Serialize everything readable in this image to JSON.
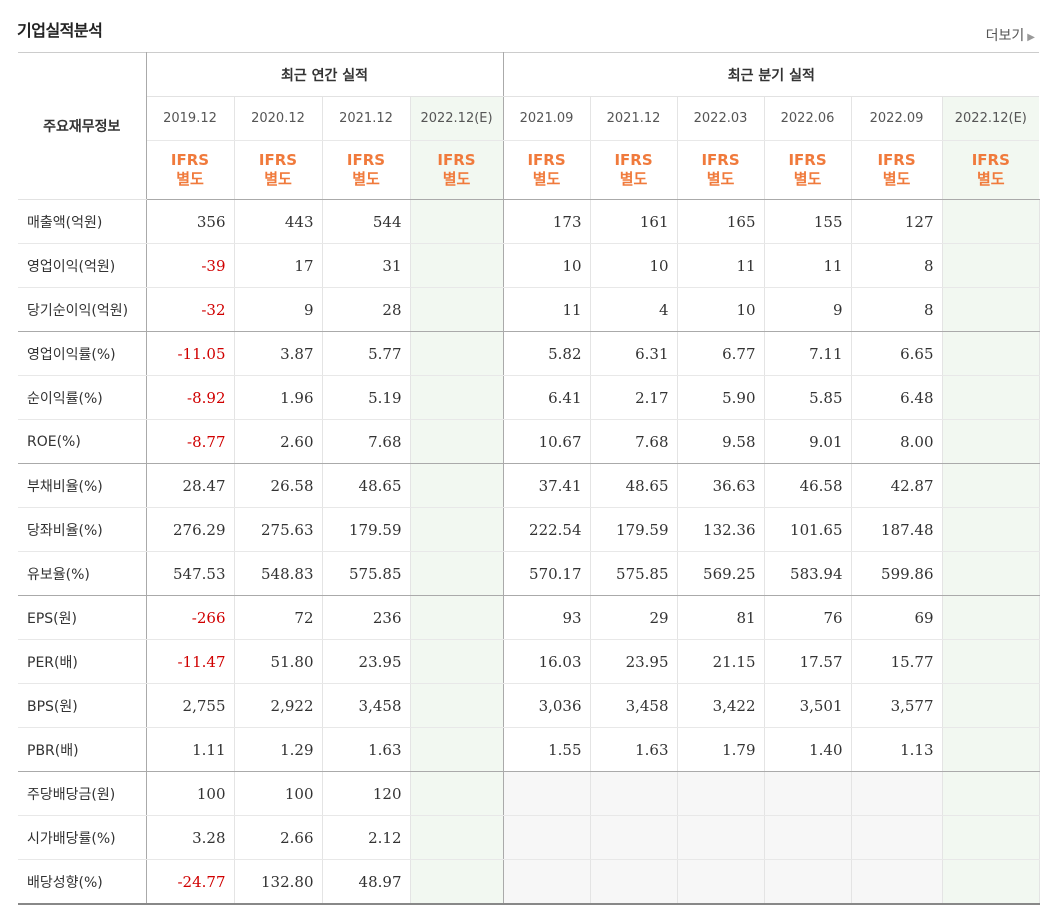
{
  "header": {
    "title": "기업실적분석",
    "more_label": "더보기"
  },
  "table": {
    "row_header": "주요재무정보",
    "group_annual": "최근 연간 실적",
    "group_quarter": "최근 분기 실적",
    "periods": [
      "2019.12",
      "2020.12",
      "2021.12",
      "2022.12(E)",
      "2021.09",
      "2021.12",
      "2022.03",
      "2022.06",
      "2022.09",
      "2022.12(E)"
    ],
    "ifrs": "IFRS",
    "separate": "별도",
    "rows": [
      {
        "label": "매출액(억원)",
        "values": [
          "356",
          "443",
          "544",
          "",
          "173",
          "161",
          "165",
          "155",
          "127",
          ""
        ]
      },
      {
        "label": "영업이익(억원)",
        "values": [
          "-39",
          "17",
          "31",
          "",
          "10",
          "10",
          "11",
          "11",
          "8",
          ""
        ]
      },
      {
        "label": "당기순이익(억원)",
        "values": [
          "-32",
          "9",
          "28",
          "",
          "11",
          "4",
          "10",
          "9",
          "8",
          ""
        ]
      },
      {
        "label": "영업이익률(%)",
        "values": [
          "-11.05",
          "3.87",
          "5.77",
          "",
          "5.82",
          "6.31",
          "6.77",
          "7.11",
          "6.65",
          ""
        ]
      },
      {
        "label": "순이익률(%)",
        "values": [
          "-8.92",
          "1.96",
          "5.19",
          "",
          "6.41",
          "2.17",
          "5.90",
          "5.85",
          "6.48",
          ""
        ]
      },
      {
        "label": "ROE(%)",
        "values": [
          "-8.77",
          "2.60",
          "7.68",
          "",
          "10.67",
          "7.68",
          "9.58",
          "9.01",
          "8.00",
          ""
        ]
      },
      {
        "label": "부채비율(%)",
        "values": [
          "28.47",
          "26.58",
          "48.65",
          "",
          "37.41",
          "48.65",
          "36.63",
          "46.58",
          "42.87",
          ""
        ]
      },
      {
        "label": "당좌비율(%)",
        "values": [
          "276.29",
          "275.63",
          "179.59",
          "",
          "222.54",
          "179.59",
          "132.36",
          "101.65",
          "187.48",
          ""
        ]
      },
      {
        "label": "유보율(%)",
        "values": [
          "547.53",
          "548.83",
          "575.85",
          "",
          "570.17",
          "575.85",
          "569.25",
          "583.94",
          "599.86",
          ""
        ]
      },
      {
        "label": "EPS(원)",
        "values": [
          "-266",
          "72",
          "236",
          "",
          "93",
          "29",
          "81",
          "76",
          "69",
          ""
        ]
      },
      {
        "label": "PER(배)",
        "values": [
          "-11.47",
          "51.80",
          "23.95",
          "",
          "16.03",
          "23.95",
          "21.15",
          "17.57",
          "15.77",
          ""
        ]
      },
      {
        "label": "BPS(원)",
        "values": [
          "2,755",
          "2,922",
          "3,458",
          "",
          "3,036",
          "3,458",
          "3,422",
          "3,501",
          "3,577",
          ""
        ]
      },
      {
        "label": "PBR(배)",
        "values": [
          "1.11",
          "1.29",
          "1.63",
          "",
          "1.55",
          "1.63",
          "1.79",
          "1.40",
          "1.13",
          ""
        ]
      },
      {
        "label": "주당배당금(원)",
        "values": [
          "100",
          "100",
          "120",
          "",
          "",
          "",
          "",
          "",
          "",
          ""
        ]
      },
      {
        "label": "시가배당률(%)",
        "values": [
          "3.28",
          "2.66",
          "2.12",
          "",
          "",
          "",
          "",
          "",
          "",
          ""
        ]
      },
      {
        "label": "배당성향(%)",
        "values": [
          "-24.77",
          "132.80",
          "48.97",
          "",
          "",
          "",
          "",
          "",
          "",
          ""
        ]
      }
    ]
  },
  "colors": {
    "negative": "#d00000",
    "ifrs": "#f07a3c",
    "estimate_bg": "#f2f8f1",
    "estimate_text": "#5e9160"
  }
}
